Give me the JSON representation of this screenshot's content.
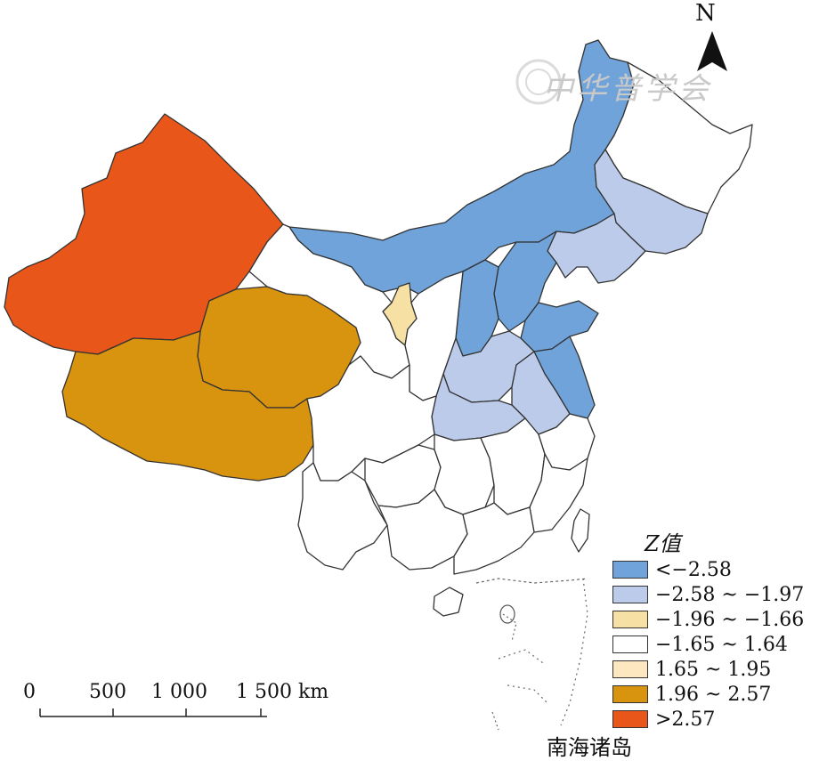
{
  "map": {
    "north_label": "N",
    "legend": {
      "title": "Z值",
      "classes": [
        {
          "label": "<−2.58",
          "color": "#6fa3da"
        },
        {
          "label": "−2.58 ~ −1.97",
          "color": "#bccbea"
        },
        {
          "label": "−1.96 ~ −1.66",
          "color": "#f7e0a3"
        },
        {
          "label": "−1.65 ~ 1.64",
          "color": "#ffffff"
        },
        {
          "label": "1.65 ~ 1.95",
          "color": "#fce7c1"
        },
        {
          "label": "1.96 ~ 2.57",
          "color": "#d8930f"
        },
        {
          "label": ">2.57",
          "color": "#e8561a"
        }
      ]
    },
    "scale_bar": {
      "labels": [
        "0",
        "500",
        "1 000",
        "1 500 km"
      ]
    },
    "inset_caption": "南海诸岛",
    "watermark_text": "中华普学会",
    "icons": [
      "north-arrow-icon",
      "seal-watermark-icon"
    ]
  }
}
